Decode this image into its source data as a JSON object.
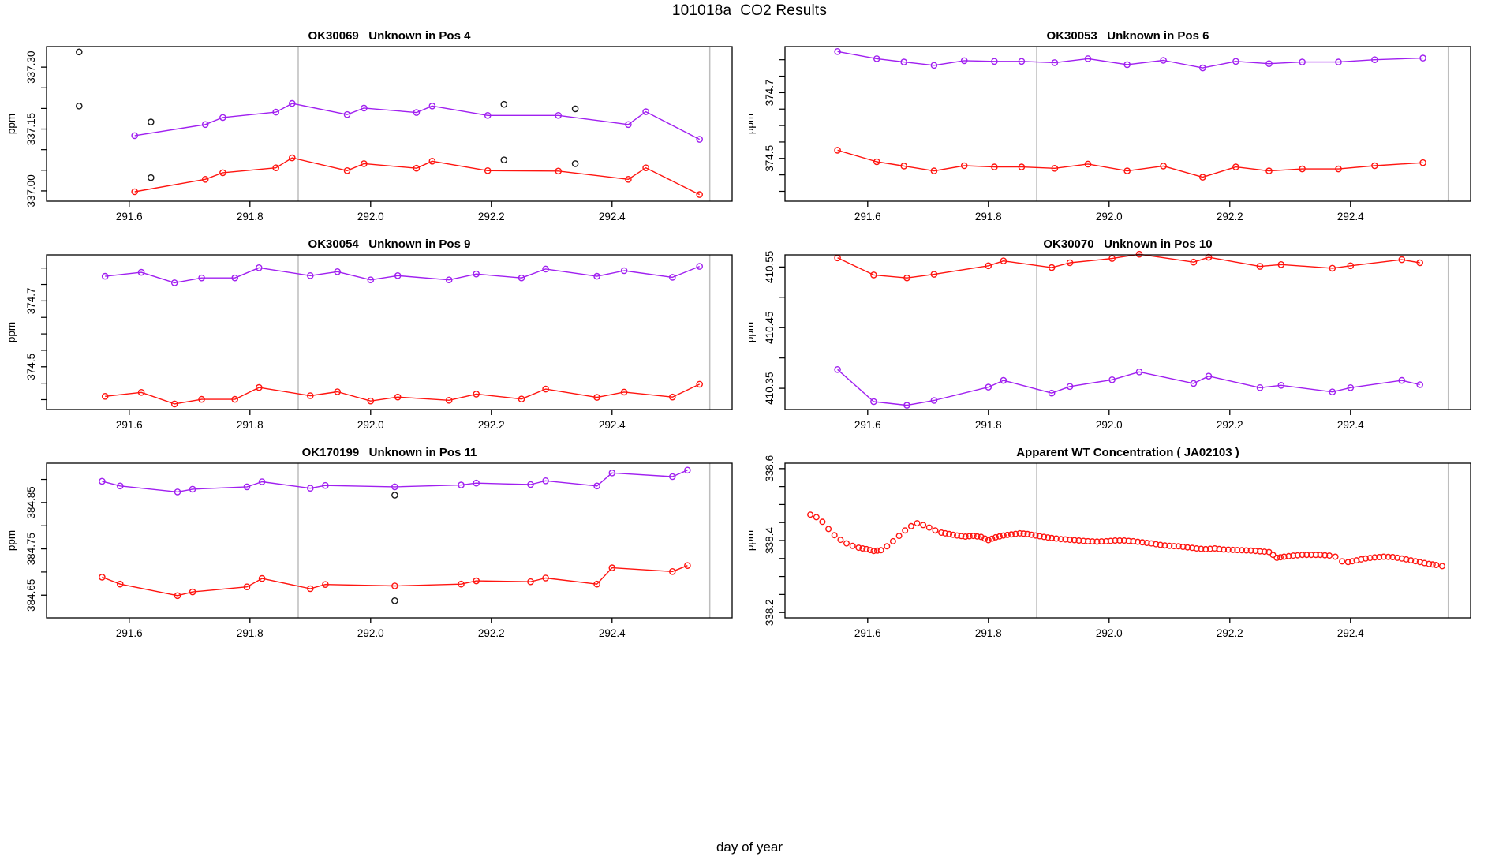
{
  "page": {
    "title": "101018a  CO2 Results",
    "xlabel": "day of year"
  },
  "colors": {
    "purple": "#a020f0",
    "red": "#ff1510",
    "outlier": "#1a1a1a",
    "refline": "#bdbdbd",
    "axis": "#000000",
    "background": "#ffffff"
  },
  "axes": {
    "xlim": [
      291.463,
      292.599
    ],
    "xticks": [
      {
        "v": 291.6,
        "label": "291.6"
      },
      {
        "v": 291.8,
        "label": "291.8"
      },
      {
        "v": 292.0,
        "label": "292.0"
      },
      {
        "v": 292.2,
        "label": "292.2"
      },
      {
        "v": 292.4,
        "label": "292.4"
      }
    ],
    "reference_lines_x": [
      291.88,
      292.562
    ],
    "ylabel_every_plot": "ppm"
  },
  "chart_data": [
    {
      "type": "line",
      "title": "OK30069   Unknown in Pos 4",
      "ylabel": "ppm",
      "xlabel": "day of year",
      "grid": false,
      "ylim": [
        336.975,
        337.35
      ],
      "yticks": [
        {
          "v": 337.0,
          "label": "337.00"
        },
        {
          "v": 337.15,
          "label": "337.15"
        },
        {
          "v": 337.3,
          "label": "337.30"
        }
      ],
      "yticks_minor": [
        337.05,
        337.1,
        337.2,
        337.25
      ],
      "series": [
        {
          "name": "purple-line",
          "color_key": "purple",
          "line": true,
          "x": [
            291.609,
            291.726,
            291.755,
            291.843,
            291.87,
            291.961,
            291.989,
            292.076,
            292.102,
            292.194,
            292.311,
            292.427,
            292.456,
            292.545
          ],
          "y": [
            337.134,
            337.161,
            337.178,
            337.191,
            337.212,
            337.185,
            337.201,
            337.19,
            337.206,
            337.183,
            337.183,
            337.161,
            337.192,
            337.125
          ]
        },
        {
          "name": "red-line",
          "color_key": "red",
          "line": true,
          "x": [
            291.609,
            291.726,
            291.755,
            291.843,
            291.87,
            291.961,
            291.989,
            292.076,
            292.102,
            292.194,
            292.311,
            292.427,
            292.456,
            292.545
          ],
          "y": [
            336.998,
            337.028,
            337.044,
            337.056,
            337.08,
            337.049,
            337.066,
            337.055,
            337.072,
            337.049,
            337.048,
            337.028,
            337.056,
            336.991
          ]
        },
        {
          "name": "black-outliers",
          "color_key": "outlier",
          "line": false,
          "points": [
            [
              291.517,
              337.337
            ],
            [
              291.517,
              337.206
            ],
            [
              291.636,
              337.167
            ],
            [
              291.636,
              337.032
            ],
            [
              292.221,
              337.21
            ],
            [
              292.221,
              337.075
            ],
            [
              292.339,
              337.199
            ],
            [
              292.339,
              337.066
            ]
          ]
        }
      ]
    },
    {
      "type": "line",
      "title": "OK30053   Unknown in Pos 6",
      "ylabel": "ppm",
      "xlabel": "day of year",
      "grid": false,
      "ylim": [
        374.37,
        374.84
      ],
      "yticks": [
        {
          "v": 374.5,
          "label": "374.5"
        },
        {
          "v": 374.7,
          "label": "374.7"
        }
      ],
      "yticks_minor": [
        374.4,
        374.45,
        374.55,
        374.6,
        374.65,
        374.75,
        374.8
      ],
      "series": [
        {
          "name": "purple-line",
          "color_key": "purple",
          "line": true,
          "x": [
            291.55,
            291.615,
            291.66,
            291.71,
            291.76,
            291.81,
            291.855,
            291.91,
            291.965,
            292.03,
            292.09,
            292.155,
            292.21,
            292.265,
            292.32,
            292.38,
            292.44,
            292.52
          ],
          "y": [
            374.825,
            374.803,
            374.793,
            374.783,
            374.797,
            374.795,
            374.795,
            374.791,
            374.803,
            374.785,
            374.798,
            374.775,
            374.795,
            374.788,
            374.793,
            374.793,
            374.8,
            374.805
          ]
        },
        {
          "name": "red-line",
          "color_key": "red",
          "line": true,
          "x": [
            291.55,
            291.615,
            291.66,
            291.71,
            291.76,
            291.81,
            291.855,
            291.91,
            291.965,
            292.03,
            292.09,
            292.155,
            292.21,
            292.265,
            292.32,
            292.38,
            292.44,
            292.52
          ],
          "y": [
            374.525,
            374.49,
            374.477,
            374.462,
            374.478,
            374.474,
            374.474,
            374.47,
            374.483,
            374.462,
            374.477,
            374.443,
            374.474,
            374.462,
            374.468,
            374.468,
            374.478,
            374.487
          ]
        }
      ]
    },
    {
      "type": "line",
      "title": "OK30054   Unknown in Pos 9",
      "ylabel": "ppm",
      "xlabel": "day of year",
      "grid": false,
      "ylim": [
        374.37,
        374.84
      ],
      "yticks": [
        {
          "v": 374.5,
          "label": "374.5"
        },
        {
          "v": 374.7,
          "label": "374.7"
        }
      ],
      "yticks_minor": [
        374.4,
        374.45,
        374.55,
        374.6,
        374.65,
        374.75,
        374.8
      ],
      "series": [
        {
          "name": "purple-line",
          "color_key": "purple",
          "line": true,
          "x": [
            291.56,
            291.62,
            291.675,
            291.72,
            291.775,
            291.815,
            291.9,
            291.945,
            292.0,
            292.045,
            292.13,
            292.175,
            292.25,
            292.29,
            292.375,
            292.42,
            292.5,
            292.545
          ],
          "y": [
            374.775,
            374.787,
            374.755,
            374.77,
            374.77,
            374.801,
            374.777,
            374.789,
            374.764,
            374.777,
            374.764,
            374.782,
            374.77,
            374.797,
            374.775,
            374.792,
            374.772,
            374.805
          ]
        },
        {
          "name": "red-line",
          "color_key": "red",
          "line": true,
          "x": [
            291.56,
            291.62,
            291.675,
            291.72,
            291.775,
            291.815,
            291.9,
            291.945,
            292.0,
            292.045,
            292.13,
            292.175,
            292.25,
            292.29,
            292.375,
            292.42,
            292.5,
            292.545
          ],
          "y": [
            374.41,
            374.422,
            374.387,
            374.401,
            374.401,
            374.437,
            374.412,
            374.424,
            374.396,
            374.408,
            374.398,
            374.417,
            374.402,
            374.432,
            374.407,
            374.423,
            374.408,
            374.447
          ]
        }
      ]
    },
    {
      "type": "line",
      "title": "OK30070   Unknown in Pos 10",
      "ylabel": "ppm",
      "xlabel": "day of year",
      "grid": false,
      "ylim": [
        410.315,
        410.57
      ],
      "yticks": [
        {
          "v": 410.35,
          "label": "410.35"
        },
        {
          "v": 410.45,
          "label": "410.45"
        },
        {
          "v": 410.55,
          "label": "410.55"
        }
      ],
      "yticks_minor": [
        410.4,
        410.5
      ],
      "series": [
        {
          "name": "red-line",
          "color_key": "red",
          "line": true,
          "x": [
            291.55,
            291.61,
            291.665,
            291.71,
            291.8,
            291.825,
            291.905,
            291.935,
            292.005,
            292.05,
            292.14,
            292.165,
            292.25,
            292.285,
            292.37,
            292.4,
            292.485,
            292.515
          ],
          "y": [
            410.565,
            410.537,
            410.532,
            410.538,
            410.552,
            410.56,
            410.549,
            410.557,
            410.564,
            410.571,
            410.558,
            410.566,
            410.551,
            410.554,
            410.548,
            410.552,
            410.562,
            410.557
          ]
        },
        {
          "name": "purple-line",
          "color_key": "purple",
          "line": true,
          "x": [
            291.55,
            291.61,
            291.665,
            291.71,
            291.8,
            291.825,
            291.905,
            291.935,
            292.005,
            292.05,
            292.14,
            292.165,
            292.25,
            292.285,
            292.37,
            292.4,
            292.485,
            292.515
          ],
          "y": [
            410.381,
            410.328,
            410.322,
            410.33,
            410.352,
            410.363,
            410.342,
            410.353,
            410.364,
            410.377,
            410.358,
            410.37,
            410.351,
            410.355,
            410.344,
            410.351,
            410.363,
            410.356
          ]
        }
      ]
    },
    {
      "type": "line",
      "title": "OK170199   Unknown in Pos 11",
      "ylabel": "ppm",
      "xlabel": "day of year",
      "grid": false,
      "ylim": [
        384.601,
        384.935
      ],
      "yticks": [
        {
          "v": 384.65,
          "label": "384.65"
        },
        {
          "v": 384.75,
          "label": "384.75"
        },
        {
          "v": 384.85,
          "label": "384.85"
        }
      ],
      "yticks_minor": [
        384.7,
        384.8,
        384.9
      ],
      "series": [
        {
          "name": "purple-line",
          "color_key": "purple",
          "line": true,
          "x": [
            291.555,
            291.585,
            291.68,
            291.705,
            291.795,
            291.82,
            291.9,
            291.925,
            292.04,
            292.15,
            292.175,
            292.265,
            292.29,
            292.375,
            292.4,
            292.5,
            292.525
          ],
          "y": [
            384.896,
            384.886,
            384.873,
            384.879,
            384.884,
            384.895,
            384.881,
            384.887,
            384.884,
            384.888,
            384.892,
            384.889,
            384.897,
            384.886,
            384.914,
            384.906,
            384.92
          ]
        },
        {
          "name": "red-line",
          "color_key": "red",
          "line": true,
          "x": [
            291.555,
            291.585,
            291.68,
            291.705,
            291.795,
            291.82,
            291.9,
            291.925,
            292.04,
            292.15,
            292.175,
            292.265,
            292.29,
            292.375,
            292.4,
            292.5,
            292.525
          ],
          "y": [
            384.689,
            384.674,
            384.649,
            384.657,
            384.668,
            384.686,
            384.664,
            384.673,
            384.67,
            384.674,
            384.681,
            384.679,
            384.687,
            384.674,
            384.709,
            384.701,
            384.714
          ]
        },
        {
          "name": "black-outliers",
          "color_key": "outlier",
          "line": false,
          "points": [
            [
              292.04,
              384.866
            ],
            [
              292.04,
              384.638
            ]
          ]
        }
      ]
    },
    {
      "type": "scatter",
      "title": "Apparent WT Concentration ( JA02103 )",
      "ylabel": "ppm",
      "xlabel": "day of year",
      "grid": false,
      "dense": true,
      "ylim": [
        338.185,
        338.615
      ],
      "yticks": [
        {
          "v": 338.2,
          "label": "338.2"
        },
        {
          "v": 338.4,
          "label": "338.4"
        },
        {
          "v": 338.6,
          "label": "338.6"
        }
      ],
      "yticks_minor": [
        338.25,
        338.3,
        338.35,
        338.45,
        338.5,
        338.55
      ],
      "series": [
        {
          "name": "red-dense-scatter",
          "color_key": "red",
          "line": false,
          "points": [
            [
              291.505,
              338.472
            ],
            [
              291.515,
              338.465
            ],
            [
              291.525,
              338.452
            ],
            [
              291.535,
              338.432
            ],
            [
              291.545,
              338.415
            ],
            [
              291.555,
              338.402
            ],
            [
              291.565,
              338.392
            ],
            [
              291.575,
              338.385
            ],
            [
              291.585,
              338.38
            ],
            [
              291.598,
              338.376
            ],
            [
              291.61,
              338.371
            ],
            [
              291.622,
              338.373
            ],
            [
              291.632,
              338.384
            ],
            [
              291.642,
              338.398
            ],
            [
              291.652,
              338.413
            ],
            [
              291.662,
              338.428
            ],
            [
              291.672,
              338.44
            ],
            [
              291.682,
              338.448
            ],
            [
              291.692,
              338.443
            ],
            [
              291.702,
              338.436
            ],
            [
              291.712,
              338.428
            ],
            [
              291.722,
              338.422
            ],
            [
              291.735,
              338.418
            ],
            [
              291.748,
              338.414
            ],
            [
              291.762,
              338.411
            ],
            [
              291.775,
              338.413
            ],
            [
              291.788,
              338.41
            ],
            [
              291.8,
              338.401
            ],
            [
              291.812,
              338.409
            ],
            [
              291.825,
              338.414
            ],
            [
              291.838,
              338.417
            ],
            [
              291.852,
              338.42
            ],
            [
              291.865,
              338.418
            ],
            [
              291.878,
              338.414
            ],
            [
              291.892,
              338.41
            ],
            [
              291.905,
              338.407
            ],
            [
              291.92,
              338.404
            ],
            [
              291.935,
              338.402
            ],
            [
              291.95,
              338.4
            ],
            [
              291.965,
              338.398
            ],
            [
              291.98,
              338.397
            ],
            [
              291.995,
              338.398
            ],
            [
              292.01,
              338.4
            ],
            [
              292.025,
              338.4
            ],
            [
              292.04,
              338.398
            ],
            [
              292.055,
              338.395
            ],
            [
              292.07,
              338.392
            ],
            [
              292.085,
              338.388
            ],
            [
              292.1,
              338.385
            ],
            [
              292.115,
              338.384
            ],
            [
              292.13,
              338.381
            ],
            [
              292.145,
              338.378
            ],
            [
              292.16,
              338.376
            ],
            [
              292.175,
              338.378
            ],
            [
              292.19,
              338.375
            ],
            [
              292.205,
              338.374
            ],
            [
              292.22,
              338.373
            ],
            [
              292.235,
              338.372
            ],
            [
              292.25,
              338.37
            ],
            [
              292.265,
              338.368
            ],
            [
              292.278,
              338.352
            ],
            [
              292.29,
              338.355
            ],
            [
              292.305,
              338.358
            ],
            [
              292.32,
              338.36
            ],
            [
              292.335,
              338.36
            ],
            [
              292.35,
              338.36
            ],
            [
              292.365,
              338.358
            ],
            [
              292.375,
              338.355
            ],
            [
              292.386,
              338.342
            ],
            [
              292.396,
              338.34
            ],
            [
              292.41,
              338.345
            ],
            [
              292.425,
              338.35
            ],
            [
              292.44,
              338.353
            ],
            [
              292.455,
              338.355
            ],
            [
              292.47,
              338.354
            ],
            [
              292.485,
              338.35
            ],
            [
              292.5,
              338.345
            ],
            [
              292.515,
              338.34
            ],
            [
              292.53,
              338.335
            ],
            [
              292.542,
              338.332
            ],
            [
              292.552,
              338.329
            ]
          ]
        }
      ]
    }
  ]
}
